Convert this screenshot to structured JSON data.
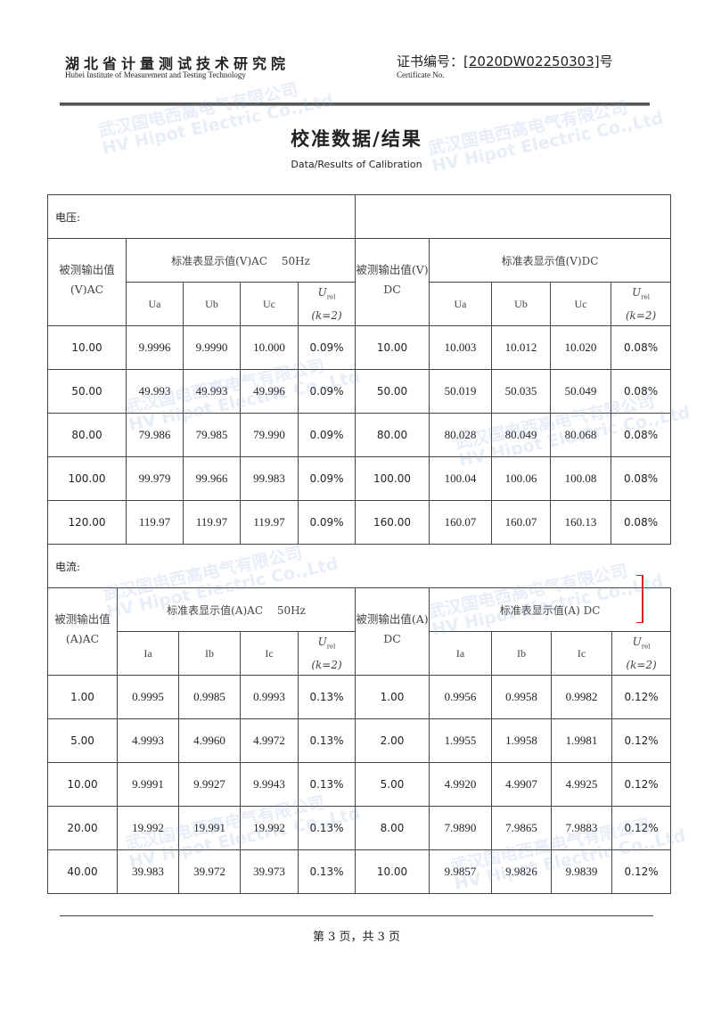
{
  "header": {
    "institute_cn": "湖北省计量测试技术研究院",
    "institute_en": "Hubei Institute of Measurement and Testing Technology",
    "cert_label_cn": "证书编号：",
    "cert_no": "[2020DW02250303]",
    "cert_suffix": "号",
    "cert_label_en": "Certificate No."
  },
  "title": {
    "cn": "校准数据/结果",
    "en": "Data/Results of Calibration"
  },
  "watermark": {
    "cn": "武汉国电西高电气有限公司",
    "en": "HV Hipot Electric Co.,Ltd"
  },
  "voltage": {
    "section": "电压:",
    "ac_label": "被测输出值(V)AC",
    "ac_group": "标准表显示值(V)AC　 50Hz",
    "dc_label": "被测输出值(V) DC",
    "dc_group": "标准表显示值(V)DC",
    "cols": [
      "Ua",
      "Ub",
      "Uc"
    ],
    "urel": "U",
    "urel_sub": "rel",
    "k": "(k=2)",
    "rows": [
      [
        "10.00",
        "9.9996",
        "9.9990",
        "10.000",
        "0.09%",
        "10.00",
        "10.003",
        "10.012",
        "10.020",
        "0.08%"
      ],
      [
        "50.00",
        "49.993",
        "49.993",
        "49.996",
        "0.09%",
        "50.00",
        "50.019",
        "50.035",
        "50.049",
        "0.08%"
      ],
      [
        "80.00",
        "79.986",
        "79.985",
        "79.990",
        "0.09%",
        "80.00",
        "80.028",
        "80.049",
        "80.068",
        "0.08%"
      ],
      [
        "100.00",
        "99.979",
        "99.966",
        "99.983",
        "0.09%",
        "100.00",
        "100.04",
        "100.06",
        "100.08",
        "0.08%"
      ],
      [
        "120.00",
        "119.97",
        "119.97",
        "119.97",
        "0.09%",
        "160.00",
        "160.07",
        "160.07",
        "160.13",
        "0.08%"
      ]
    ]
  },
  "current": {
    "section": "电流:",
    "ac_label": "被测输出值(A)AC",
    "ac_group": "标准表显示值(A)AC　 50Hz",
    "dc_label": "被测输出值(A) DC",
    "dc_group": "标准表显示值(A) DC",
    "cols": [
      "Ia",
      "Ib",
      "Ic"
    ],
    "urel": "U",
    "urel_sub": "rel",
    "k": "(k=2)",
    "rows": [
      [
        "1.00",
        "0.9995",
        "0.9985",
        "0.9993",
        "0.13%",
        "1.00",
        "0.9956",
        "0.9958",
        "0.9982",
        "0.12%"
      ],
      [
        "5.00",
        "4.9993",
        "4.9960",
        "4.9972",
        "0.13%",
        "2.00",
        "1.9955",
        "1.9958",
        "1.9981",
        "0.12%"
      ],
      [
        "10.00",
        "9.9991",
        "9.9927",
        "9.9943",
        "0.13%",
        "5.00",
        "4.9920",
        "4.9907",
        "4.9925",
        "0.12%"
      ],
      [
        "20.00",
        "19.992",
        "19.991",
        "19.992",
        "0.13%",
        "8.00",
        "7.9890",
        "7.9865",
        "7.9883",
        "0.12%"
      ],
      [
        "40.00",
        "39.983",
        "39.972",
        "39.973",
        "0.13%",
        "10.00",
        "9.9857",
        "9.9826",
        "9.9839",
        "0.12%"
      ]
    ]
  },
  "footer": {
    "page": "第 3 页，共 3 页"
  },
  "colors": {
    "text": "#222222",
    "rule": "#444444",
    "watermark": "#78a0d2",
    "annotation": "#dd2222"
  }
}
